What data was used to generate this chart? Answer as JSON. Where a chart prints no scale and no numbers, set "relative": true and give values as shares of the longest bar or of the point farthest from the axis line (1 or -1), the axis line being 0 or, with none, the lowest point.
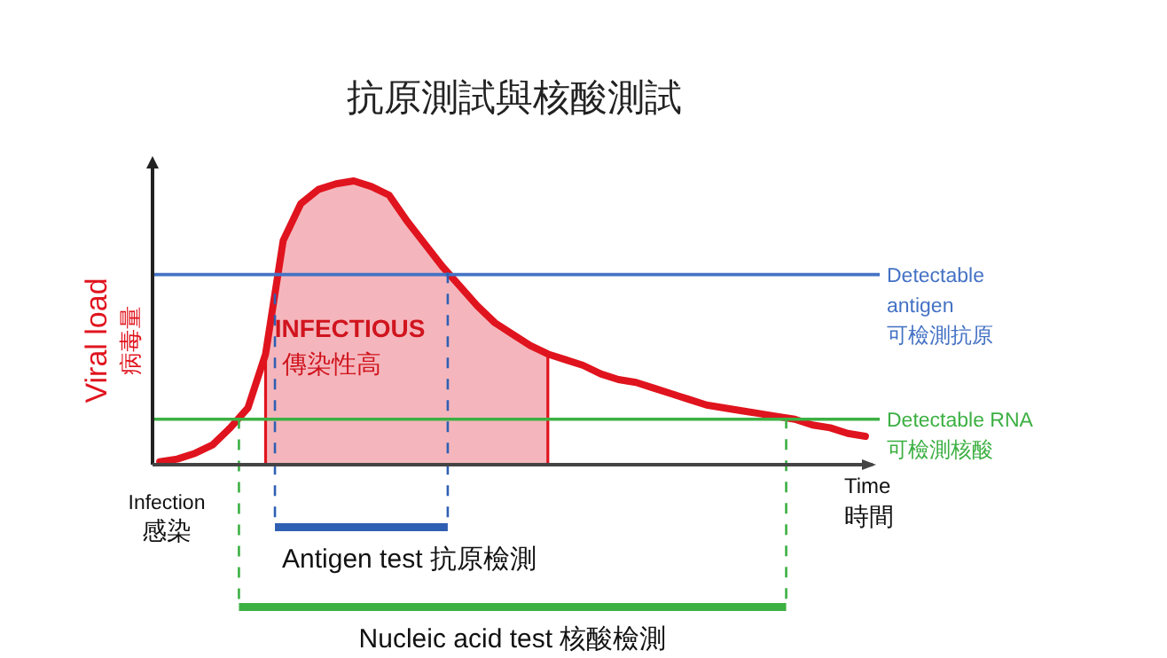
{
  "chart_data": {
    "type": "line",
    "title": "抗原測試與核酸測試",
    "relative": true,
    "xlabel": "Time\n時間",
    "ylabel": "Viral load\n病毒量",
    "categories": [
      null,
      null,
      null,
      null,
      null,
      null,
      null,
      null,
      null,
      null,
      null,
      null,
      null,
      null,
      null,
      null,
      null,
      null,
      null,
      null,
      null,
      null,
      null,
      null,
      null,
      null,
      null,
      null,
      null,
      null,
      null,
      null,
      null,
      null,
      null,
      null,
      null,
      null,
      null,
      null,
      null
    ],
    "series": [
      {
        "color": "#e0141e",
        "values": [
          0.01,
          0.02,
          0.04,
          0.07,
          0.13,
          0.2,
          0.39,
          0.79,
          0.92,
          0.97,
          0.99,
          1,
          0.98,
          0.95,
          0.86,
          0.78,
          0.7,
          0.63,
          0.56,
          0.5,
          0.46,
          0.42,
          0.39,
          0.37,
          0.35,
          0.32,
          0.3,
          0.29,
          0.27,
          0.25,
          0.23,
          0.21,
          0.2,
          0.19,
          0.18,
          0.17,
          0.16,
          0.14,
          0.13,
          0.11,
          0.1
        ]
      },
      {
        "type": "area",
        "color": "#f4b6bc",
        "values": [
          null,
          null,
          null,
          null,
          null,
          null,
          0.39,
          0.79,
          0.92,
          0.97,
          0.99,
          1,
          0.98,
          0.95,
          0.86,
          0.78,
          0.7,
          0.63,
          0.56,
          0.5,
          0.46,
          0.42,
          0.39,
          null,
          null,
          null,
          null,
          null,
          null,
          null,
          null,
          null,
          null,
          null,
          null,
          null,
          null,
          null,
          null,
          null,
          null
        ]
      }
    ],
    "ref_lines": [
      {
        "axis": "y",
        "value": 0.67,
        "label": "Detectable\nantigen\n可檢測抗原",
        "color": "#4472c4"
      },
      {
        "axis": "y",
        "value": 0.16,
        "label": "Detectable RNA\n可檢測核酸",
        "color": "#3cb043"
      }
    ],
    "annotations": [
      "INFECTIOUS\n傳染性高",
      "Antigen test 抗原檢測",
      "Nucleic acid test  核酸檢測",
      "Infection\n感染"
    ],
    "line_style": "solid",
    "grid": false
  }
}
